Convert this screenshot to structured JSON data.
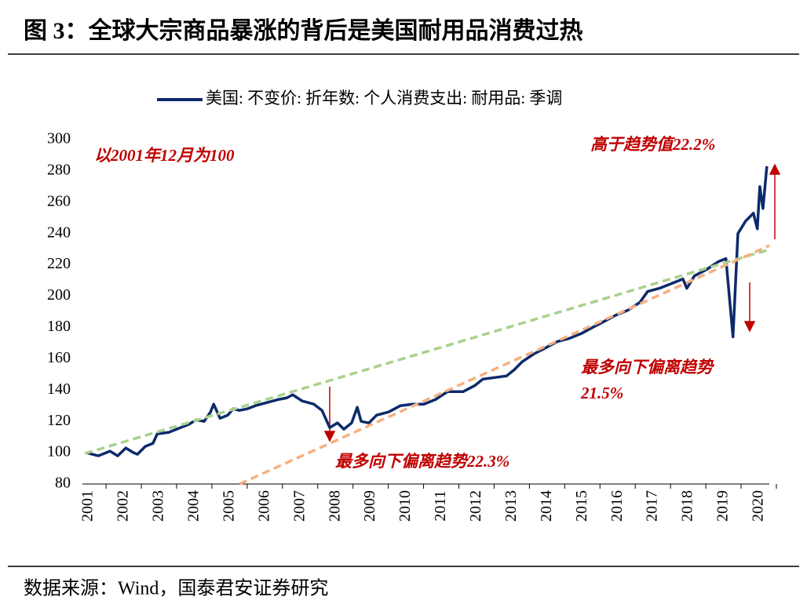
{
  "chart_data": {
    "type": "line",
    "title": "图 3：全球大宗商品暴涨的背后是美国耐用品消费过热",
    "source": "数据来源：Wind，国泰君安证券研究",
    "annotations": [
      "以2001年12月为100",
      "高于趋势值22.2%",
      "最多向下偏离趋势22.3%",
      "最多向下偏离趋势",
      "21.5%"
    ],
    "xlim": [
      2000.82,
      2020.29
    ],
    "xticks": [
      2001,
      2002,
      2003,
      2004,
      2005,
      2006,
      2007,
      2008,
      2009,
      2010,
      2011,
      2012,
      2013,
      2014,
      2015,
      2016,
      2017,
      2018,
      2019,
      2020
    ],
    "ylim": [
      80,
      300
    ],
    "yticks": [
      80,
      100,
      120,
      140,
      160,
      180,
      200,
      220,
      240,
      260,
      280,
      300
    ],
    "legend": "top",
    "series": [
      {
        "name": "美国: 不变价: 折年数: 个人消费支出: 耐用品: 季调",
        "color": "#0d2a6b",
        "x": [
          2000.93,
          2001.27,
          2001.6,
          2001.82,
          2002.05,
          2002.27,
          2002.38,
          2002.6,
          2002.82,
          2002.94,
          2003.27,
          2003.6,
          2003.83,
          2004.05,
          2004.27,
          2004.45,
          2004.54,
          2004.72,
          2004.94,
          2005.09,
          2005.27,
          2005.49,
          2005.72,
          2006.05,
          2006.38,
          2006.61,
          2006.78,
          2007.05,
          2007.38,
          2007.61,
          2007.83,
          2008.05,
          2008.23,
          2008.45,
          2008.61,
          2008.72,
          2008.94,
          2009.16,
          2009.5,
          2009.83,
          2010.17,
          2010.5,
          2010.83,
          2011.17,
          2011.61,
          2011.95,
          2012.17,
          2012.5,
          2012.84,
          2013.06,
          2013.28,
          2013.61,
          2013.95,
          2014.28,
          2014.62,
          2014.95,
          2015.28,
          2015.62,
          2015.95,
          2016.28,
          2016.62,
          2016.84,
          2017.17,
          2017.51,
          2017.84,
          2017.95,
          2018.17,
          2018.51,
          2018.84,
          2019.06,
          2019.26,
          2019.4,
          2019.62,
          2019.84,
          2019.95,
          2020.02,
          2020.11,
          2020.22
        ],
        "values": [
          100,
          98,
          101,
          98,
          103,
          100,
          99,
          104,
          106,
          112,
          113,
          116,
          118,
          121,
          120,
          126,
          131,
          122,
          124,
          128,
          127,
          128,
          130,
          132,
          134,
          135,
          137,
          133,
          131,
          127,
          116,
          119,
          115,
          119,
          129,
          120,
          119,
          124,
          126,
          130,
          131,
          131,
          134,
          139,
          139,
          143,
          147,
          148,
          149,
          153,
          158,
          163,
          167,
          171,
          173,
          176,
          180,
          184,
          188,
          191,
          196,
          203,
          205,
          208,
          211,
          205,
          213,
          217,
          222,
          224,
          174,
          240,
          248,
          253,
          243,
          270,
          256,
          283
        ]
      },
      {
        "color": "#a9d18e",
        "dash": true,
        "x": [
          2000.89,
          2020.29
        ],
        "values": [
          99.5,
          229.8
        ]
      },
      {
        "color": "#f4b183",
        "dash": true,
        "x": [
          2005.27,
          2020.29
        ],
        "values": [
          80,
          232.3
        ]
      }
    ]
  }
}
